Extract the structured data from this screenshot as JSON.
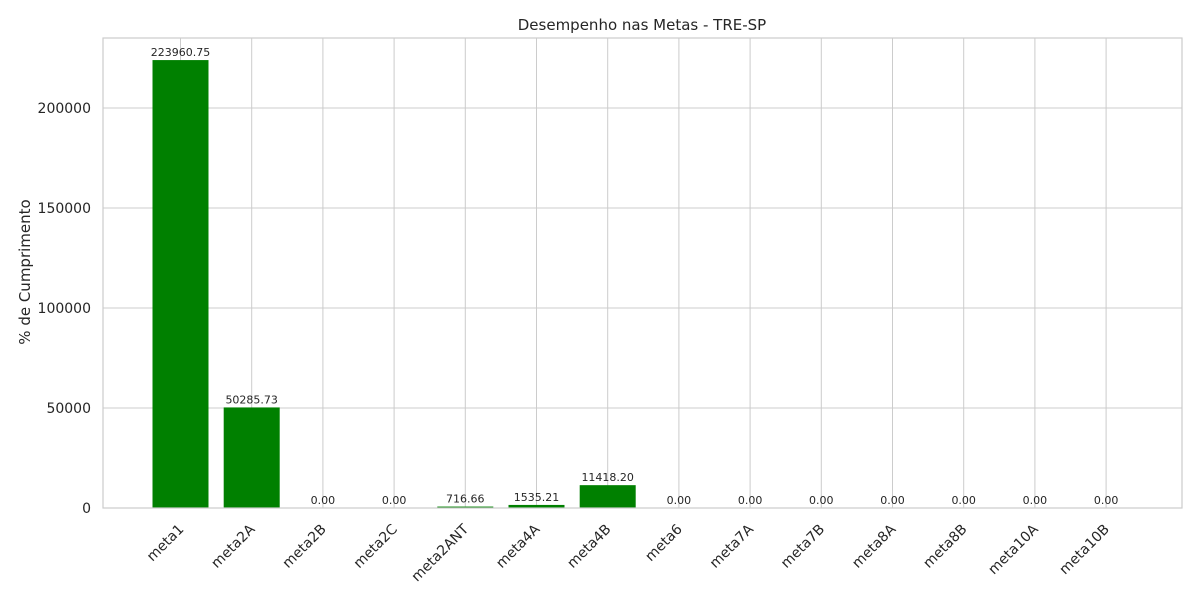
{
  "chart_data": {
    "type": "bar",
    "title": "Desempenho nas Metas - TRE-SP",
    "xlabel": "",
    "ylabel": "% de Cumprimento",
    "categories": [
      "meta1",
      "meta2A",
      "meta2B",
      "meta2C",
      "meta2ANT",
      "meta4A",
      "meta4B",
      "meta6",
      "meta7A",
      "meta7B",
      "meta8A",
      "meta8B",
      "meta10A",
      "meta10B"
    ],
    "values": [
      223960.75,
      50285.73,
      0.0,
      0.0,
      716.66,
      1535.21,
      11418.2,
      0.0,
      0.0,
      0.0,
      0.0,
      0.0,
      0.0,
      0.0
    ],
    "value_labels": [
      "223960.75",
      "50285.73",
      "0.00",
      "0.00",
      "716.66",
      "1535.21",
      "11418.20",
      "0.00",
      "0.00",
      "0.00",
      "0.00",
      "0.00",
      "0.00",
      "0.00"
    ],
    "ylim": [
      0,
      235000
    ],
    "yticks": [
      0,
      50000,
      100000,
      150000,
      200000
    ],
    "ytick_labels": [
      "0",
      "50000",
      "100000",
      "150000",
      "200000"
    ],
    "grid": true,
    "legend": "none",
    "colors": {
      "bar": "#008000",
      "grid": "#cccccc",
      "text": "#262626"
    }
  }
}
